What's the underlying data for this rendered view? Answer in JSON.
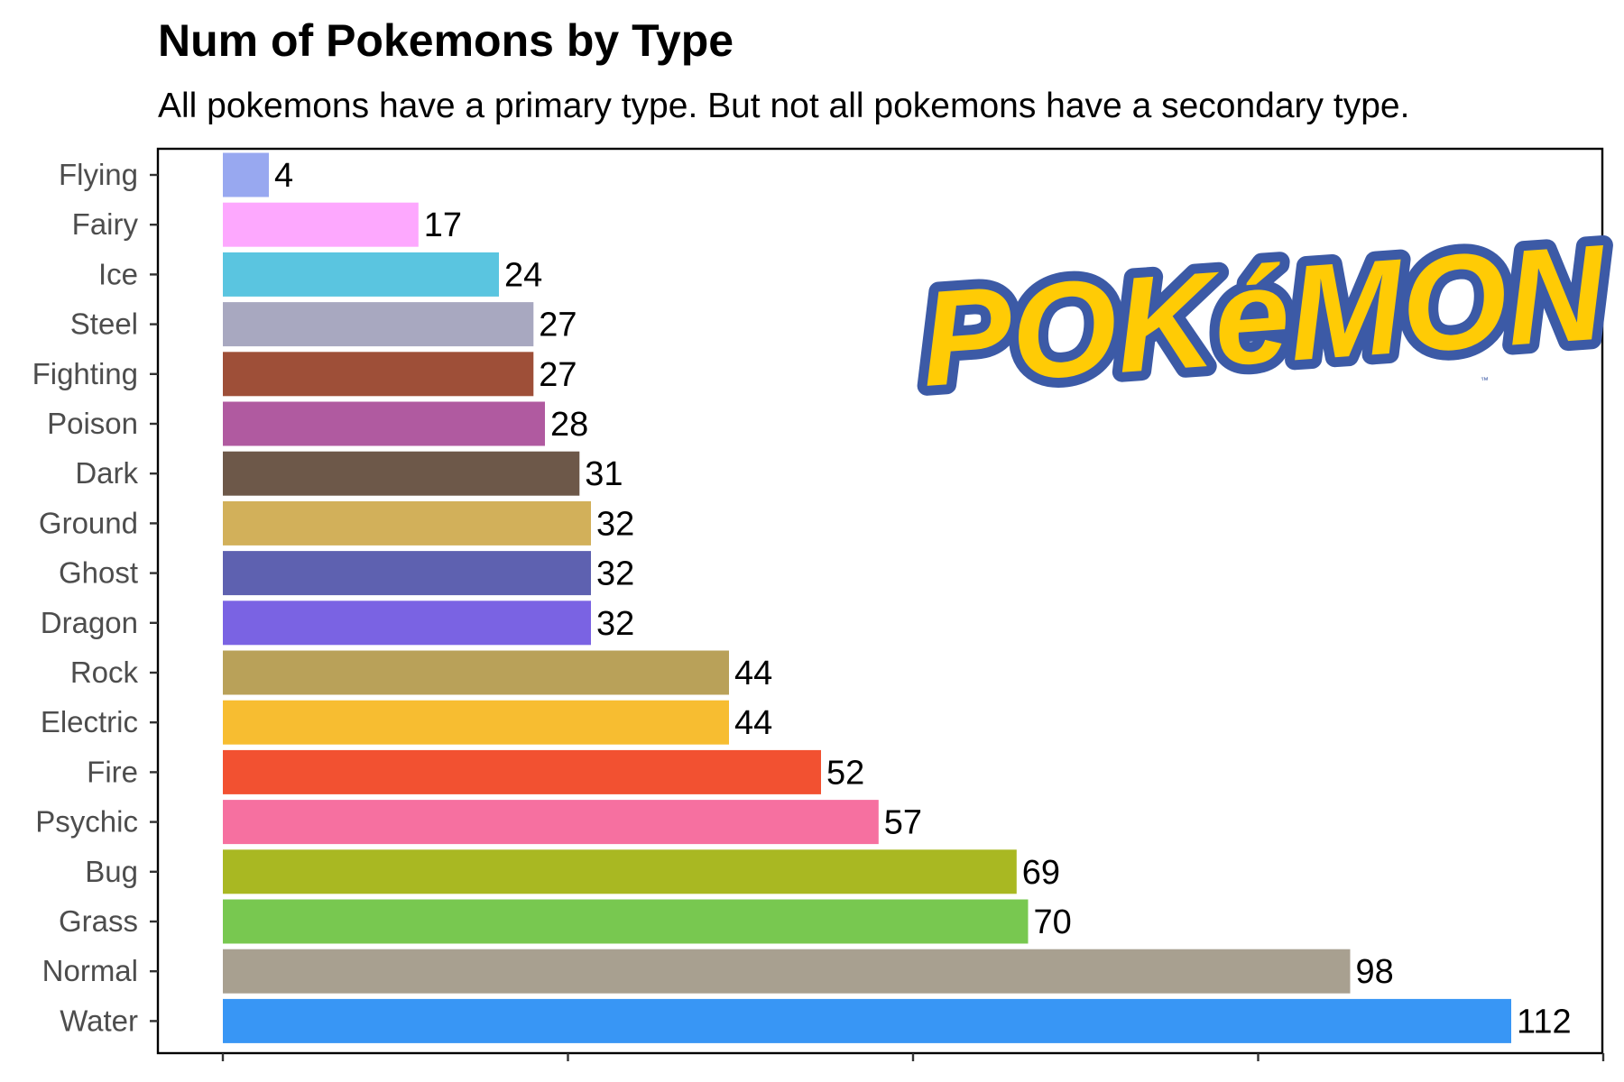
{
  "chart_data": {
    "type": "bar",
    "orientation": "horizontal",
    "title": "Num of Pokemons by Type",
    "subtitle": "All pokemons have a primary type. But not all pokemons have a secondary type.",
    "categories": [
      "Flying",
      "Fairy",
      "Ice",
      "Steel",
      "Fighting",
      "Poison",
      "Dark",
      "Ground",
      "Ghost",
      "Dragon",
      "Rock",
      "Electric",
      "Fire",
      "Psychic",
      "Bug",
      "Grass",
      "Normal",
      "Water"
    ],
    "values": [
      4,
      17,
      24,
      27,
      27,
      28,
      31,
      32,
      32,
      32,
      44,
      44,
      52,
      57,
      69,
      70,
      98,
      112
    ],
    "colors": [
      "#98a8f0",
      "#fda8fe",
      "#5ac5e0",
      "#a8a8c0",
      "#9e4f38",
      "#b05aa0",
      "#6d5849",
      "#d2b05a",
      "#5e61b0",
      "#7a63e3",
      "#b9a159",
      "#f7bd31",
      "#f25131",
      "#f670a0",
      "#a9b822",
      "#78c850",
      "#a8a090",
      "#3896f5"
    ],
    "xlim": [
      0,
      120
    ],
    "xticks": [
      0,
      30,
      60,
      90,
      120
    ],
    "xtick_labels_visible": false,
    "grid": false,
    "show_value_labels": true,
    "legend": "none"
  },
  "logo": {
    "text": "POKéMON",
    "tm": "™",
    "fill_color": "#ffcb05",
    "outline_color": "#3c5aa6"
  }
}
